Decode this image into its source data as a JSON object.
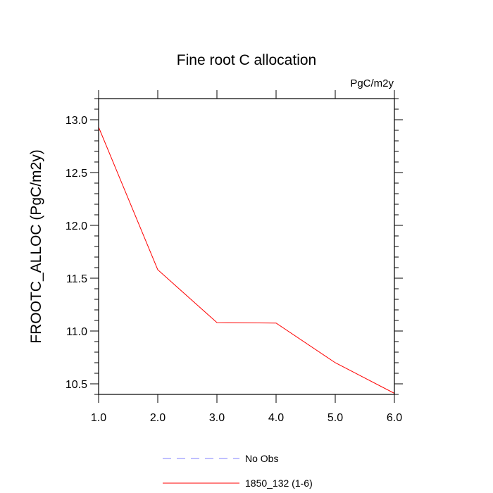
{
  "chart_data": {
    "type": "line",
    "title": "Fine root C allocation",
    "units_label": "PgC/m2y",
    "xlabel": "",
    "ylabel": "FROOTC_ALLOC  (PgC/m2y)",
    "xlim": [
      1.0,
      6.0
    ],
    "ylim": [
      10.4,
      13.2
    ],
    "x_ticks": [
      1.0,
      2.0,
      3.0,
      4.0,
      5.0,
      6.0
    ],
    "x_tick_labels": [
      "1.0",
      "2.0",
      "3.0",
      "4.0",
      "5.0",
      "6.0"
    ],
    "y_ticks": [
      10.5,
      11.0,
      11.5,
      12.0,
      12.5,
      13.0
    ],
    "y_tick_labels": [
      "10.5",
      "11.0",
      "11.5",
      "12.0",
      "12.5",
      "13.0"
    ],
    "grid": false,
    "legend_position": "bottom",
    "series": [
      {
        "name": "1850_132 (1-6)",
        "color": "#ff0000",
        "dash": "solid",
        "x": [
          1,
          2,
          3,
          4,
          5,
          6
        ],
        "values": [
          12.93,
          11.58,
          11.08,
          11.075,
          10.7,
          10.41
        ]
      }
    ],
    "legend": [
      {
        "label": "No Obs",
        "color": "#8080ff",
        "dash": "dashed"
      },
      {
        "label": "1850_132 (1-6)",
        "color": "#ff0000",
        "dash": "solid"
      }
    ]
  }
}
